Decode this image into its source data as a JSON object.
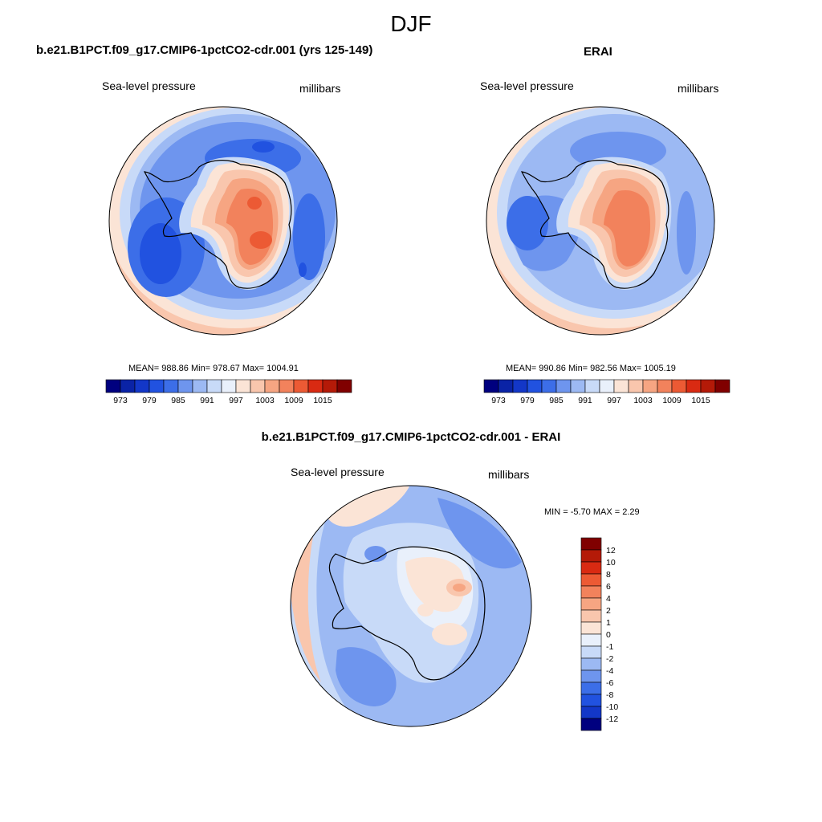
{
  "figure": {
    "title": "DJF"
  },
  "panels": [
    {
      "title": "b.e21.B1PCT.f09_g17.CMIP6-1pctCO2-cdr.001 (yrs 125-149)",
      "left_label": "Sea-level pressure",
      "right_label": "millibars",
      "stats": "MEAN= 988.86  Min= 978.67  Max= 1004.91"
    },
    {
      "title": "ERAI",
      "left_label": "Sea-level pressure",
      "right_label": "millibars",
      "stats": "MEAN= 990.86  Min= 982.56  Max= 1005.19"
    },
    {
      "title": "b.e21.B1PCT.f09_g17.CMIP6-1pctCO2-cdr.001 - ERAI",
      "left_label": "Sea-level pressure",
      "right_label": "millibars",
      "stats": "MIN =  -5.70 MAX =   2.29"
    }
  ],
  "horizontal_colorbar": {
    "labels": [
      "973",
      "979",
      "985",
      "991",
      "997",
      "1003",
      "1009",
      "1015"
    ],
    "colors": [
      "#00007f",
      "#0a23a6",
      "#1337c8",
      "#2152e0",
      "#3c6ee8",
      "#6e95ee",
      "#9cb9f3",
      "#c8daf8",
      "#e9f0fb",
      "#fbe4d6",
      "#f9c6ad",
      "#f6a582",
      "#f2825c",
      "#ec5a34",
      "#d92a12",
      "#b41a08",
      "#800000"
    ]
  },
  "vertical_colorbar": {
    "labels": [
      "12",
      "10",
      "8",
      "6",
      "4",
      "2",
      "1",
      "0",
      "-1",
      "-2",
      "-4",
      "-6",
      "-8",
      "-10",
      "-12"
    ],
    "colors": [
      "#800000",
      "#b41a08",
      "#d92a12",
      "#ec5a34",
      "#f2825c",
      "#f6a582",
      "#f9c6ad",
      "#fbe4d6",
      "#e9f0fb",
      "#c8daf8",
      "#9cb9f3",
      "#6e95ee",
      "#3c6ee8",
      "#2152e0",
      "#1337c8",
      "#00007f"
    ]
  }
}
